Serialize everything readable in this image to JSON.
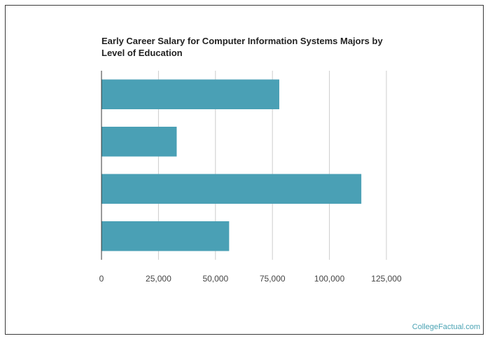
{
  "chart_data": {
    "type": "bar",
    "orientation": "horizontal",
    "title": "Early Career Salary for Computer Information Systems Majors by Level of Education",
    "categories": [
      "",
      "",
      "",
      ""
    ],
    "values": [
      78000,
      33000,
      114000,
      56000
    ],
    "xlim": [
      0,
      125000
    ],
    "ticks": [
      0,
      25000,
      50000,
      75000,
      100000,
      125000
    ],
    "tick_labels": [
      "0",
      "25,000",
      "50,000",
      "75,000",
      "100,000",
      "125,000"
    ],
    "grid": true,
    "bar_color": "#4aa0b5",
    "grid_color": "#cccccc"
  },
  "footer": {
    "credit": "CollegeFactual.com",
    "credit_color": "#4aa3b4"
  }
}
